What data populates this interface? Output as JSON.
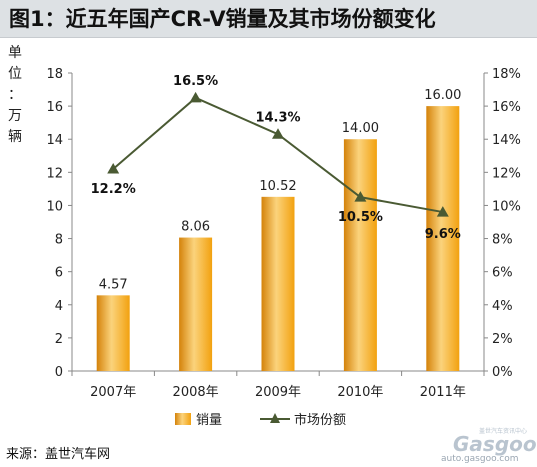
{
  "title": "图1：近五年国产CR-V销量及其市场份额变化",
  "source_note": "来源：盖世汽车网",
  "watermark": {
    "logo": "Gasgoo",
    "url": "auto.gasgoo.com",
    "tagline": "盖世汽车资讯中心"
  },
  "colors": {
    "bar": "#f2a10f",
    "bar_dark": "#d4820a",
    "bar_light": "#fbd37c",
    "line": "#4a5a33"
  },
  "chart_data": {
    "type": "bar",
    "categories": [
      "2007年",
      "2008年",
      "2009年",
      "2010年",
      "2011年"
    ],
    "series": [
      {
        "name": "销量",
        "type": "bar",
        "axis": "left",
        "values": [
          4.57,
          8.06,
          10.52,
          14.0,
          16.0
        ],
        "labels": [
          "4.57",
          "8.06",
          "10.52",
          "14.00",
          "16.00"
        ]
      },
      {
        "name": "市场份额",
        "type": "line",
        "axis": "right",
        "marker": "triangle",
        "values": [
          12.2,
          16.5,
          14.3,
          10.5,
          9.6
        ],
        "labels": [
          "12.2%",
          "16.5%",
          "14.3%",
          "10.5%",
          "9.6%"
        ]
      }
    ],
    "ylabel": "单位：万辆",
    "ylim": [
      0,
      18
    ],
    "yticks": [
      "0",
      "2",
      "4",
      "6",
      "8",
      "10",
      "12",
      "14",
      "16",
      "18"
    ],
    "y2lim": [
      0,
      18
    ],
    "y2ticks": [
      "0%",
      "2%",
      "4%",
      "6%",
      "8%",
      "10%",
      "12%",
      "14%",
      "16%",
      "18%"
    ],
    "grid": false,
    "legend_position": "bottom"
  }
}
